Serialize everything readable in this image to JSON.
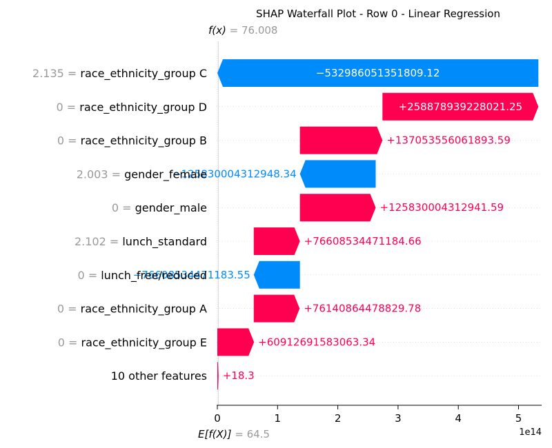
{
  "chart_data": {
    "type": "bar",
    "title": "SHAP Waterfall Plot - Row 0 - Linear Regression",
    "fx": {
      "label": "f(x)",
      "value": "76.008"
    },
    "base": {
      "label": "E[f(X)]",
      "value": "64.5"
    },
    "x_tick_labels": [
      "0",
      "1",
      "2",
      "3",
      "4",
      "5"
    ],
    "x_ticks": [
      0,
      1,
      2,
      3,
      4,
      5
    ],
    "x_offset_label": "1e14",
    "xlim": [
      0,
      5.45
    ],
    "colors": {
      "positive": "#ff0051",
      "negative": "#008bfb",
      "feature_value": "#999999",
      "text": "#000000",
      "grid": "#cccccc"
    },
    "features": [
      {
        "value": "2.135",
        "name": "race_ethnicity_group C",
        "label": "−532986051351809.12",
        "start": 5.3299,
        "end": 0,
        "label_inside": true
      },
      {
        "value": "0",
        "name": "race_ethnicity_group D",
        "label": "+258878939228021.25",
        "start": 2.7411,
        "end": 5.3299,
        "label_inside": true
      },
      {
        "value": "0",
        "name": "race_ethnicity_group B",
        "label": "+137053556061893.59",
        "start": 1.3706,
        "end": 2.7411,
        "label_inside": false
      },
      {
        "value": "2.003",
        "name": "gender_female",
        "label": "−125830004312948.34",
        "start": 2.6289,
        "end": 1.3706,
        "label_inside": false
      },
      {
        "value": "0",
        "name": "gender_male",
        "label": "+125830004312941.59",
        "start": 1.3706,
        "end": 2.6289,
        "label_inside": false
      },
      {
        "value": "2.102",
        "name": "lunch_standard",
        "label": "+76608534471184.66",
        "start": 0.6045,
        "end": 1.3706,
        "label_inside": false
      },
      {
        "value": "0",
        "name": "lunch_free/reduced",
        "label": "−76608534471183.55",
        "start": 1.3706,
        "end": 0.6045,
        "label_inside": false
      },
      {
        "value": "0",
        "name": "race_ethnicity_group A",
        "label": "+76140864478829.78",
        "start": 0.6045,
        "end": 1.3659,
        "label_inside": false
      },
      {
        "value": "0",
        "name": "race_ethnicity_group E",
        "label": "+60912691583063.34",
        "start": 0,
        "end": 0.6091,
        "label_inside": false
      },
      {
        "value": "",
        "name": "10 other features",
        "label": "+18.3",
        "start": 0,
        "end": 0.02,
        "label_inside": false
      }
    ]
  }
}
